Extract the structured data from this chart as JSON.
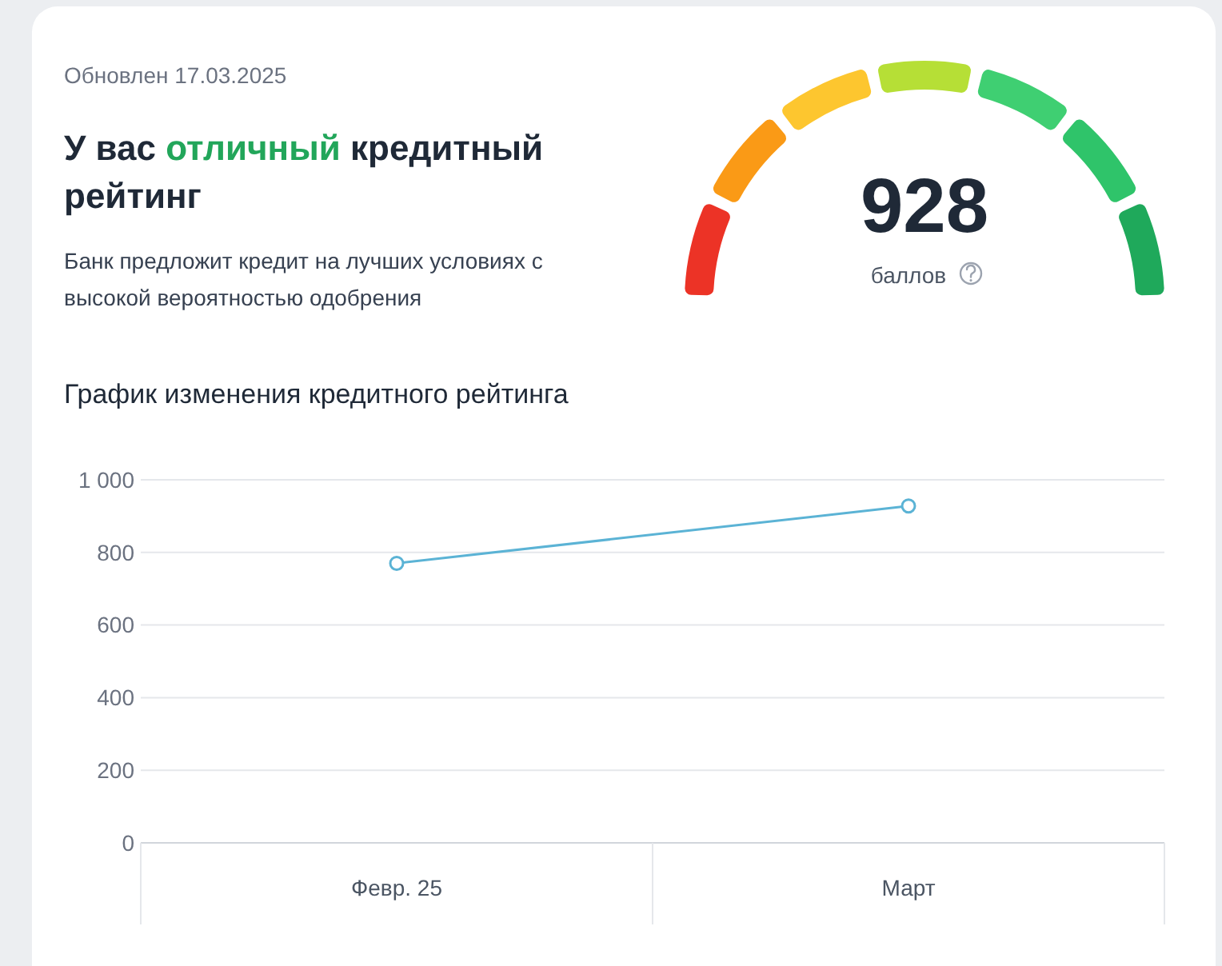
{
  "chart_data": [
    {
      "type": "other",
      "title": "У вас отличный кредитный рейтинг",
      "subtitle": "Банк предложит кредит на лучших условиях с высокой вероятностью одобрения",
      "annotations": [
        "Обновлен 17.03.2025",
        "928",
        "баллов"
      ]
    },
    {
      "type": "line",
      "title": "График изменения кредитного рейтинга",
      "categories": [
        "Февр. 25",
        "Март"
      ],
      "series": [
        {
          "color": "#5bb3d5",
          "values": [
            770,
            928
          ]
        }
      ],
      "ylim": [
        0,
        1000
      ],
      "yticks": [
        0,
        200,
        400,
        600,
        800,
        {
          "value": 1000,
          "label": "1 000"
        }
      ],
      "grid": "y",
      "marker": "circle"
    }
  ]
}
